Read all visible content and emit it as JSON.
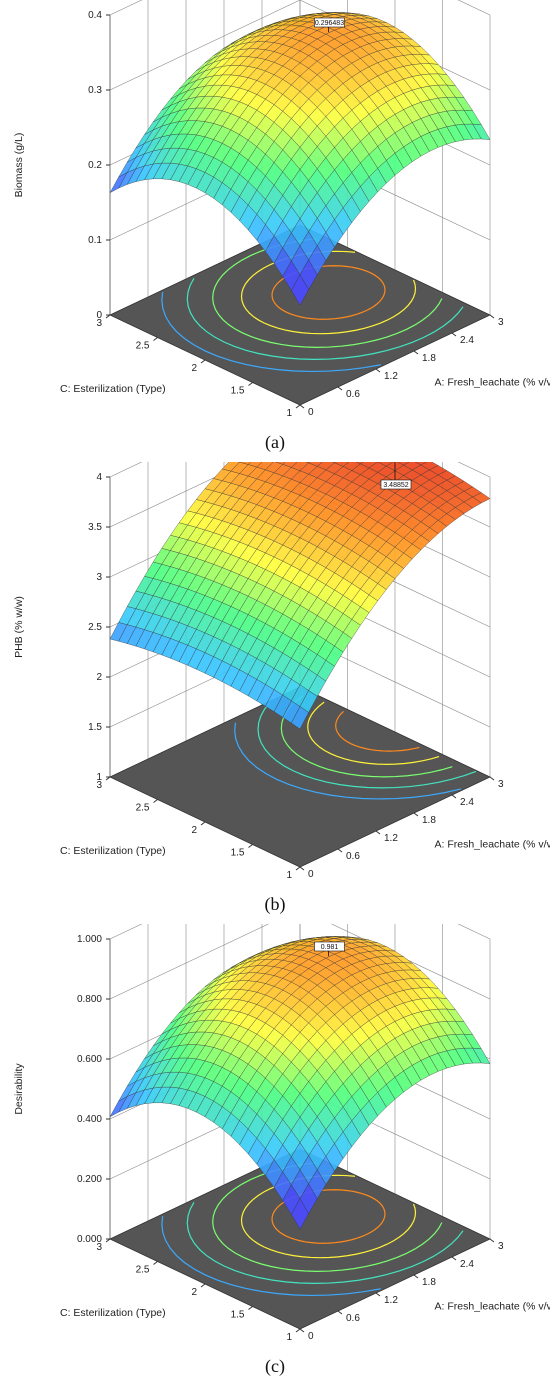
{
  "chart_data": [
    {
      "type": "surface3d",
      "panel_label": "(a)",
      "zlabel": "Biomass (g/L)",
      "xlabel": "A: Fresh_leachate (% v/v)",
      "ylabel": "C: Esterilization (Type)",
      "x_ticks": [
        "0",
        "0.6",
        "1.2",
        "1.8",
        "2.4",
        "3"
      ],
      "y_ticks": [
        "1",
        "1.5",
        "2",
        "2.5",
        "3"
      ],
      "z_ticks": [
        "0",
        "0.1",
        "0.2",
        "0.3",
        "0.4"
      ],
      "zlim": [
        0,
        0.4
      ],
      "max_label": "0.296483",
      "surface_shape": "dome",
      "colormap": [
        "#4b4bff",
        "#37c9ff",
        "#4dff80",
        "#ffff3c",
        "#ff8a1c",
        "#e01b1b"
      ]
    },
    {
      "type": "surface3d",
      "panel_label": "(b)",
      "zlabel": "PHB (% w/w)",
      "xlabel": "A: Fresh_leachate (% v/v)",
      "ylabel": "C: Esterilization (Type)",
      "x_ticks": [
        "0",
        "0.6",
        "1.2",
        "1.8",
        "2.4",
        "3"
      ],
      "y_ticks": [
        "1",
        "1.5",
        "2",
        "2.5",
        "3"
      ],
      "z_ticks": [
        "1",
        "1.5",
        "2",
        "2.5",
        "3",
        "3.5",
        "4"
      ],
      "zlim": [
        1,
        4
      ],
      "max_label": "3.48852",
      "surface_shape": "ridge",
      "colormap": [
        "#4b4bff",
        "#37c9ff",
        "#4dff80",
        "#ffff3c",
        "#ff8a1c",
        "#e01b1b"
      ]
    },
    {
      "type": "surface3d",
      "panel_label": "(c)",
      "zlabel": "Desirability",
      "xlabel": "A: Fresh_leachate (% v/v)",
      "ylabel": "C: Esterilization (Type)",
      "x_ticks": [
        "0",
        "0.6",
        "1.2",
        "1.8",
        "2.4",
        "3"
      ],
      "y_ticks": [
        "1",
        "1.5",
        "2",
        "2.5",
        "3"
      ],
      "z_ticks": [
        "0.000",
        "0.200",
        "0.400",
        "0.600",
        "0.800",
        "1.000"
      ],
      "zlim": [
        0,
        1
      ],
      "max_label": "0.981",
      "surface_shape": "dome",
      "colormap": [
        "#4b4bff",
        "#37c9ff",
        "#4dff80",
        "#ffff3c",
        "#ff8a1c",
        "#e01b1b"
      ]
    }
  ]
}
